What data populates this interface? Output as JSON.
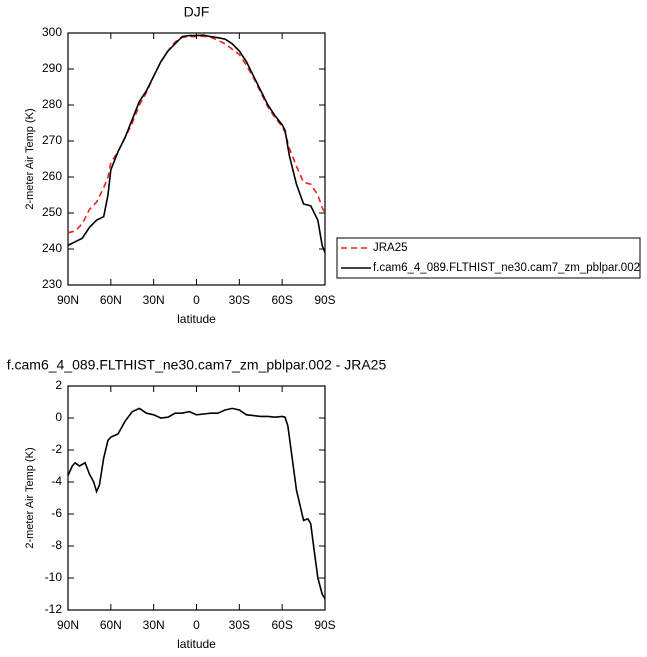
{
  "chart_data": [
    {
      "type": "line",
      "title": "DJF",
      "xlabel": "latitude",
      "ylabel": "2-meter Air Temp (K)",
      "xlim": [
        90,
        -90
      ],
      "xticks": [
        {
          "value": 90,
          "label": "90N"
        },
        {
          "value": 60,
          "label": "60N"
        },
        {
          "value": 30,
          "label": "30N"
        },
        0,
        {
          "value": -30,
          "label": "30S"
        },
        {
          "value": -60,
          "label": "60S"
        },
        {
          "value": -90,
          "label": "90S"
        }
      ],
      "ylim": [
        230,
        300
      ],
      "yticks": [
        230,
        240,
        250,
        260,
        270,
        280,
        290,
        300
      ],
      "legend_position": "right",
      "x": [
        90,
        85,
        80,
        75,
        70,
        65,
        62,
        60,
        55,
        50,
        45,
        40,
        35,
        30,
        25,
        20,
        15,
        10,
        5,
        0,
        -5,
        -10,
        -15,
        -20,
        -25,
        -30,
        -35,
        -40,
        -45,
        -50,
        -55,
        -60,
        -62,
        -65,
        -70,
        -75,
        -80,
        -85,
        -88,
        -90
      ],
      "series": [
        {
          "name": "JRA25",
          "color": "#e8241c",
          "dashed": true,
          "values": [
            244.5,
            245,
            247,
            251,
            253,
            257,
            260,
            264,
            267,
            271,
            275,
            280,
            283.5,
            288,
            292,
            295,
            297.5,
            298.8,
            299,
            299,
            299.1,
            298.8,
            298,
            297,
            295.5,
            294,
            291,
            287.5,
            283.5,
            279.5,
            276.5,
            274,
            272.5,
            268,
            263,
            258.5,
            258,
            255,
            251.5,
            250
          ]
        },
        {
          "name": "f.cam6_4_089.FLTHIST_ne30.cam7_zm_pblpar.002",
          "color": "#000000",
          "dashed": false,
          "values": [
            241,
            242,
            243,
            246,
            248,
            249,
            255,
            262,
            267,
            271,
            276,
            281,
            284,
            288,
            292,
            295,
            297,
            299,
            299.3,
            299.3,
            299.4,
            299,
            298.7,
            298.3,
            297,
            295,
            292,
            288,
            284,
            280,
            277,
            274.5,
            273,
            266,
            258,
            252.5,
            252,
            248,
            241,
            239
          ]
        }
      ]
    },
    {
      "type": "line",
      "title": "f.cam6_4_089.FLTHIST_ne30.cam7_zm_pblpar.002 - JRA25",
      "xlabel": "latitude",
      "ylabel": "2-meter Air Temp (K)",
      "xlim": [
        90,
        -90
      ],
      "xticks": [
        {
          "value": 90,
          "label": "90N"
        },
        {
          "value": 60,
          "label": "60N"
        },
        {
          "value": 30,
          "label": "30N"
        },
        0,
        {
          "value": -30,
          "label": "30S"
        },
        {
          "value": -60,
          "label": "60S"
        },
        {
          "value": -90,
          "label": "90S"
        }
      ],
      "ylim": [
        -12,
        2
      ],
      "yticks": [
        -12,
        -10,
        -8,
        -6,
        -4,
        -2,
        0,
        2
      ],
      "color": "#000000",
      "x": [
        90,
        87,
        85,
        82,
        78,
        75,
        72,
        70,
        68,
        65,
        62,
        60,
        55,
        50,
        45,
        40,
        35,
        30,
        25,
        20,
        15,
        10,
        5,
        0,
        -5,
        -10,
        -15,
        -20,
        -25,
        -30,
        -35,
        -40,
        -45,
        -50,
        -55,
        -60,
        -62,
        -64,
        -67,
        -70,
        -75,
        -78,
        -80,
        -82,
        -85,
        -88,
        -90
      ],
      "values": [
        -3.6,
        -3,
        -2.8,
        -3,
        -2.8,
        -3.5,
        -4,
        -4.6,
        -4.2,
        -2.5,
        -1.4,
        -1.2,
        -1,
        -0.2,
        0.4,
        0.6,
        0.3,
        0.2,
        0,
        0.05,
        0.3,
        0.3,
        0.4,
        0.2,
        0.25,
        0.3,
        0.3,
        0.5,
        0.6,
        0.5,
        0.2,
        0.15,
        0.1,
        0.1,
        0.05,
        0.1,
        0.05,
        -0.5,
        -2.5,
        -4.5,
        -6.4,
        -6.3,
        -6.6,
        -8,
        -10,
        -11,
        -11.3
      ]
    }
  ]
}
